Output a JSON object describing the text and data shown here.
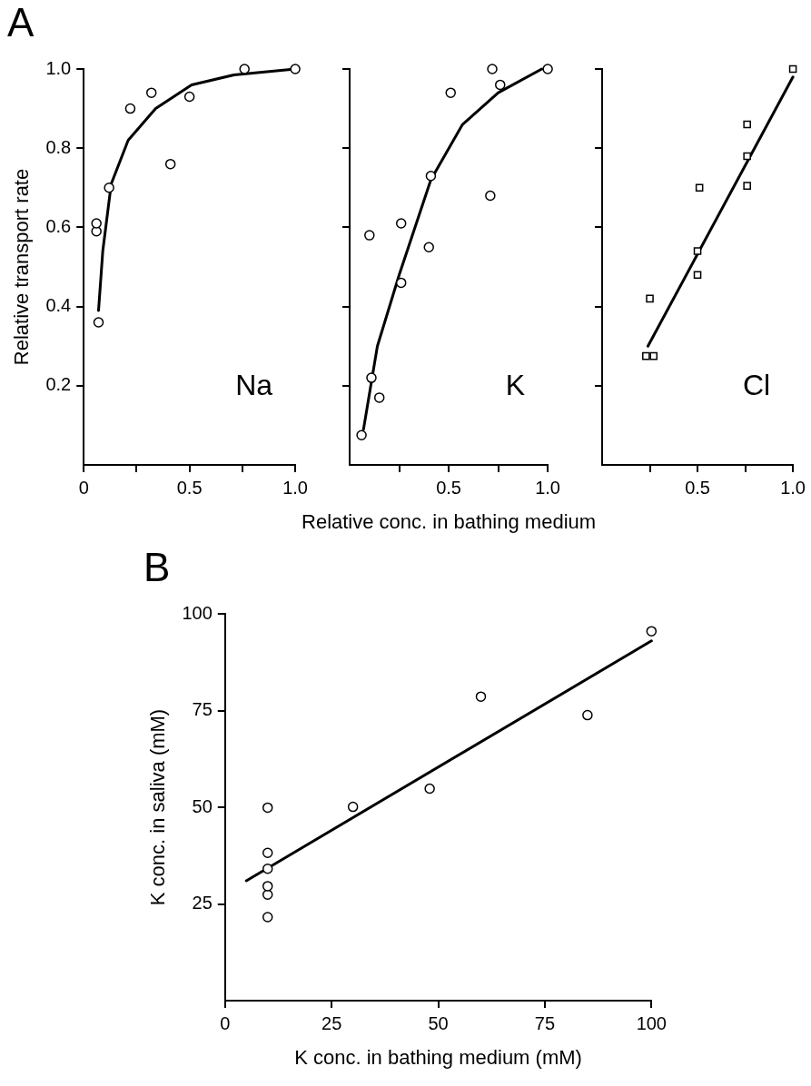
{
  "chart_data": [
    {
      "type": "scatter",
      "title": "A",
      "ylabel": "Relative transport rate",
      "annotations": [
        "Na"
      ],
      "xlim": [
        0,
        1.0
      ],
      "ylim": [
        0,
        1.0
      ],
      "xticks": [
        0,
        {
          "value": 0.25,
          "label": null
        },
        0.5,
        {
          "value": 0.75,
          "label": null
        },
        {
          "value": 1,
          "label": "1.0"
        }
      ],
      "yticks": [
        0.2,
        0.4,
        0.6,
        0.8,
        {
          "value": 1,
          "label": "1.0"
        }
      ],
      "grid": false,
      "legend": false,
      "series": [
        {
          "color": "#000000",
          "marker": "circle",
          "x": [
            0.07,
            0.06,
            0.06,
            0.12,
            0.22,
            0.32,
            0.41,
            0.5,
            0.76,
            1.0
          ],
          "values": [
            0.36,
            0.59,
            0.61,
            0.7,
            0.9,
            0.94,
            0.76,
            0.93,
            1.0,
            1.0
          ]
        },
        {
          "type": "line",
          "color": "#000000",
          "marker": "none",
          "x": [
            0.07,
            0.09,
            0.13,
            0.21,
            0.34,
            0.51,
            0.71,
            1.0
          ],
          "values": [
            0.39,
            0.54,
            0.71,
            0.82,
            0.9,
            0.96,
            0.985,
            1.0
          ]
        }
      ]
    },
    {
      "type": "scatter",
      "xlabel": "Relative conc. in bathing medium",
      "annotations": [
        "K"
      ],
      "xlim": [
        0,
        1.0
      ],
      "ylim": [
        0,
        1.0
      ],
      "xticks": [
        {
          "value": 0.25,
          "label": null
        },
        0.5,
        {
          "value": 0.75,
          "label": null
        },
        {
          "value": 1,
          "label": "1.0"
        }
      ],
      "yticks": [
        {
          "value": 0.2,
          "label": null
        },
        {
          "value": 0.4,
          "label": null
        },
        {
          "value": 0.6,
          "label": null
        },
        {
          "value": 0.8,
          "label": null
        },
        {
          "value": 1,
          "label": null
        }
      ],
      "tick_labels": "x",
      "grid": false,
      "legend": false,
      "series": [
        {
          "color": "#000000",
          "marker": "circle",
          "x": [
            0.06,
            0.11,
            0.15,
            0.1,
            0.26,
            0.26,
            0.4,
            0.41,
            0.51,
            0.71,
            0.72,
            0.76,
            1.0
          ],
          "values": [
            0.075,
            0.22,
            0.17,
            0.58,
            0.46,
            0.61,
            0.55,
            0.73,
            0.94,
            0.68,
            1.0,
            0.96,
            1.0
          ]
        },
        {
          "type": "line",
          "color": "#000000",
          "marker": "none",
          "x": [
            0.07,
            0.14,
            0.25,
            0.41,
            0.57,
            0.75,
            0.97
          ],
          "values": [
            0.09,
            0.3,
            0.48,
            0.72,
            0.86,
            0.94,
            1.0
          ]
        }
      ]
    },
    {
      "type": "scatter",
      "annotations": [
        "Cl"
      ],
      "xlim": [
        0,
        1.0
      ],
      "ylim": [
        0,
        1.0
      ],
      "xticks": [
        {
          "value": 0.25,
          "label": null
        },
        0.5,
        {
          "value": 0.75,
          "label": null
        },
        {
          "value": 1,
          "label": "1.0"
        }
      ],
      "yticks": [
        {
          "value": 0.2,
          "label": null
        },
        {
          "value": 0.4,
          "label": null
        },
        {
          "value": 0.6,
          "label": null
        },
        {
          "value": 0.8,
          "label": null
        },
        {
          "value": 1,
          "label": null
        }
      ],
      "tick_labels": "x",
      "grid": false,
      "legend": false,
      "series": [
        {
          "color": "#000000",
          "marker": "square",
          "x": [
            0.23,
            0.27,
            0.25,
            0.5,
            0.5,
            0.51,
            0.76,
            0.76,
            0.76,
            1.0
          ],
          "values": [
            0.275,
            0.275,
            0.42,
            0.48,
            0.54,
            0.7,
            0.705,
            0.78,
            0.86,
            1.0
          ]
        },
        {
          "type": "line",
          "color": "#000000",
          "marker": "none",
          "x": [
            0.24,
            1.0
          ],
          "values": [
            0.3,
            0.98
          ]
        }
      ]
    },
    {
      "type": "scatter",
      "title": "B",
      "xlabel": "K conc. in bathing medium (mM)",
      "ylabel": "K conc. in saliva (mM)",
      "xlim": [
        0,
        100
      ],
      "ylim": [
        0,
        100
      ],
      "xticks": [
        0,
        25,
        50,
        75,
        100
      ],
      "yticks": [
        25,
        50,
        75,
        100
      ],
      "grid": false,
      "legend": false,
      "series": [
        {
          "color": "#000000",
          "marker": "circle",
          "x": [
            10,
            10,
            10,
            10,
            10,
            10,
            30,
            48,
            60,
            85,
            100
          ],
          "values": [
            21.6,
            27.4,
            29.6,
            34.1,
            38.2,
            49.9,
            50.1,
            54.8,
            78.6,
            73.8,
            95.5
          ]
        },
        {
          "type": "line",
          "color": "#000000",
          "marker": "none",
          "x": [
            5,
            100
          ],
          "values": [
            31,
            93
          ]
        }
      ]
    }
  ]
}
